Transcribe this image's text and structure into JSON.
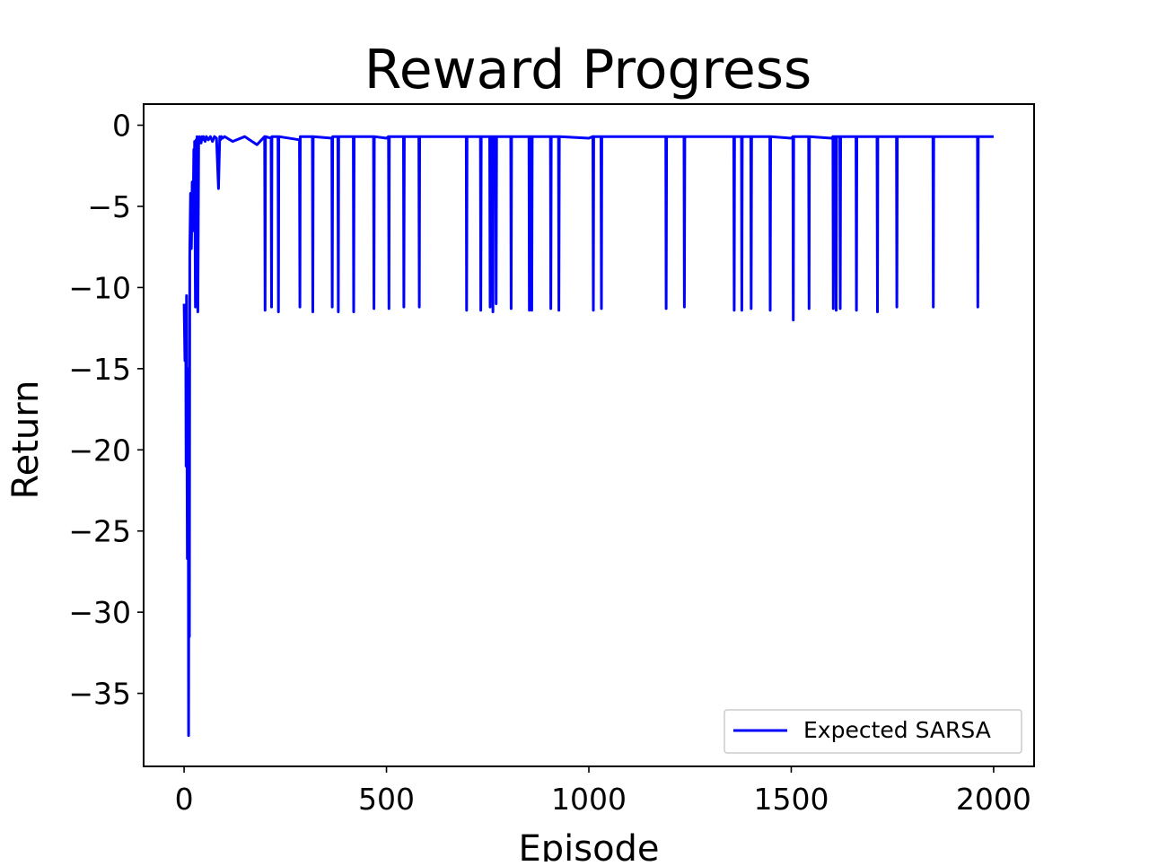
{
  "chart_data": {
    "type": "line",
    "title": "Reward Progress",
    "xlabel": "Episode",
    "ylabel": "Return",
    "xlim": [
      -100,
      2100
    ],
    "ylim": [
      -39.5,
      1.3
    ],
    "x_ticks": [
      0,
      500,
      1000,
      1500,
      2000
    ],
    "x_tick_labels": [
      "0",
      "500",
      "1000",
      "1500",
      "2000"
    ],
    "y_ticks": [
      0,
      -5,
      -10,
      -15,
      -20,
      -25,
      -30,
      -35
    ],
    "y_tick_labels": [
      "0",
      "−5",
      "−10",
      "−15",
      "−20",
      "−25",
      "−30",
      "−35"
    ],
    "grid": false,
    "legend_position": "lower-right",
    "series": [
      {
        "name": "Expected SARSA",
        "color": "#0000ff",
        "x": [
          0,
          2,
          4,
          5,
          6,
          8,
          10,
          11,
          12,
          13,
          14,
          16,
          18,
          20,
          22,
          24,
          25,
          26,
          28,
          30,
          31,
          32,
          34,
          36,
          38,
          40,
          42,
          44,
          46,
          48,
          50,
          52,
          55,
          60,
          65,
          70,
          75,
          80,
          85,
          88,
          90,
          92,
          95,
          100,
          120,
          150,
          180,
          199,
          200,
          201,
          215,
          216,
          217,
          232,
          233,
          234,
          285,
          286,
          287,
          317,
          318,
          319,
          365,
          366,
          367,
          380,
          381,
          382,
          418,
          419,
          420,
          468,
          469,
          470,
          500,
          505,
          506,
          507,
          542,
          543,
          544,
          580,
          581,
          582,
          697,
          698,
          699,
          732,
          733,
          734,
          755,
          756,
          757,
          762,
          763,
          764,
          770,
          771,
          772,
          807,
          808,
          809,
          852,
          853,
          854,
          858,
          859,
          860,
          905,
          906,
          907,
          925,
          926,
          927,
          1000,
          1010,
          1011,
          1012,
          1030,
          1031,
          1032,
          1190,
          1191,
          1192,
          1235,
          1236,
          1237,
          1358,
          1359,
          1360,
          1377,
          1378,
          1379,
          1400,
          1401,
          1402,
          1447,
          1448,
          1449,
          1500,
          1504,
          1505,
          1506,
          1543,
          1544,
          1545,
          1600,
          1603,
          1604,
          1605,
          1610,
          1611,
          1612,
          1620,
          1621,
          1622,
          1660,
          1661,
          1662,
          1712,
          1713,
          1714,
          1760,
          1761,
          1762,
          1850,
          1851,
          1852,
          1960,
          1961,
          1962,
          2000
        ],
        "y": [
          -11.0,
          -14.5,
          -12.0,
          -21.0,
          -10.5,
          -26.7,
          -15.0,
          -37.6,
          -20.0,
          -31.5,
          -8.0,
          -4.2,
          -7.6,
          -3.5,
          -6.5,
          -1.5,
          -6.0,
          -1.0,
          -11.2,
          -0.9,
          -10.5,
          -0.7,
          -11.5,
          -1.2,
          -0.7,
          -0.8,
          -1.1,
          -0.7,
          -0.9,
          -0.7,
          -0.8,
          -1.0,
          -0.7,
          -0.9,
          -0.7,
          -1.0,
          -0.7,
          -0.8,
          -3.9,
          -0.7,
          -0.9,
          -0.7,
          -0.8,
          -0.7,
          -1.0,
          -0.7,
          -1.2,
          -0.7,
          -11.4,
          -0.7,
          -0.8,
          -11.2,
          -0.7,
          -0.7,
          -11.5,
          -0.7,
          -0.9,
          -11.2,
          -0.7,
          -0.7,
          -11.5,
          -0.7,
          -0.8,
          -11.2,
          -0.7,
          -0.7,
          -11.5,
          -0.7,
          -0.7,
          -11.5,
          -0.7,
          -0.7,
          -11.3,
          -0.7,
          -0.8,
          -0.7,
          -11.3,
          -0.7,
          -0.7,
          -11.2,
          -0.7,
          -0.7,
          -11.2,
          -0.7,
          -0.7,
          -11.4,
          -0.7,
          -0.7,
          -11.4,
          -0.7,
          -0.7,
          -11.2,
          -0.7,
          -0.7,
          -11.5,
          -0.7,
          -0.7,
          -11.0,
          -0.7,
          -0.7,
          -11.3,
          -0.7,
          -0.7,
          -11.4,
          -0.7,
          -0.7,
          -11.4,
          -0.7,
          -0.7,
          -11.3,
          -0.7,
          -0.7,
          -11.4,
          -0.7,
          -0.8,
          -0.7,
          -11.4,
          -0.7,
          -0.7,
          -11.3,
          -0.7,
          -0.7,
          -11.3,
          -0.7,
          -0.7,
          -11.2,
          -0.7,
          -0.7,
          -11.4,
          -0.7,
          -0.7,
          -11.4,
          -0.7,
          -0.7,
          -11.3,
          -0.7,
          -0.7,
          -11.4,
          -0.7,
          -0.8,
          -0.7,
          -12.0,
          -0.7,
          -0.7,
          -11.3,
          -0.7,
          -0.8,
          -0.7,
          -11.3,
          -0.7,
          -0.7,
          -11.4,
          -0.7,
          -0.7,
          -11.3,
          -0.7,
          -0.7,
          -11.4,
          -0.7,
          -0.7,
          -11.5,
          -0.7,
          -0.7,
          -11.2,
          -0.7,
          -0.7,
          -11.2,
          -0.7,
          -0.7,
          -11.2,
          -0.7,
          -0.7
        ]
      }
    ]
  }
}
